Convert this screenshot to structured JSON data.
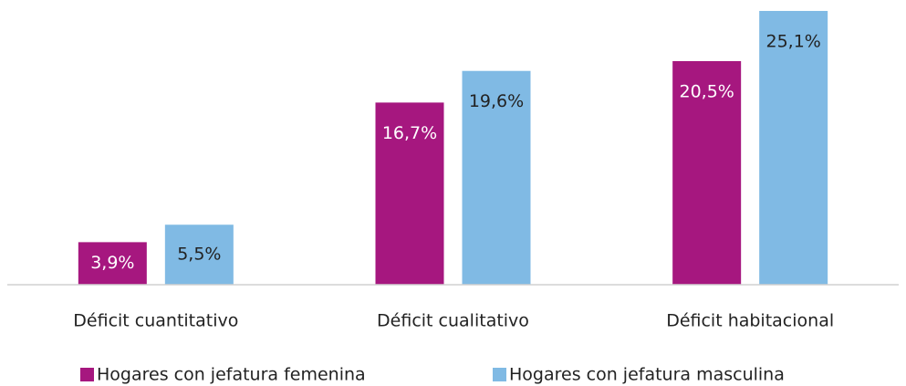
{
  "chart_data": {
    "type": "bar",
    "categories": [
      "Déficit cuantitativo",
      "Déficit cualitativo",
      "Déficit habitacional"
    ],
    "series": [
      {
        "name": "Hogares con jefatura femenina",
        "color": "#a6177f",
        "label_color": "#ffffff",
        "values": [
          3.9,
          16.7,
          20.5
        ],
        "value_labels": [
          "3,9%",
          "16,7%",
          "20,5%"
        ]
      },
      {
        "name": "Hogares con jefatura masculina",
        "color": "#80bae4",
        "label_color": "#222222",
        "values": [
          5.5,
          19.6,
          25.1
        ],
        "value_labels": [
          "5,5%",
          "19,6%",
          "25,1%"
        ]
      }
    ],
    "ylim": [
      0,
      25.6
    ]
  }
}
